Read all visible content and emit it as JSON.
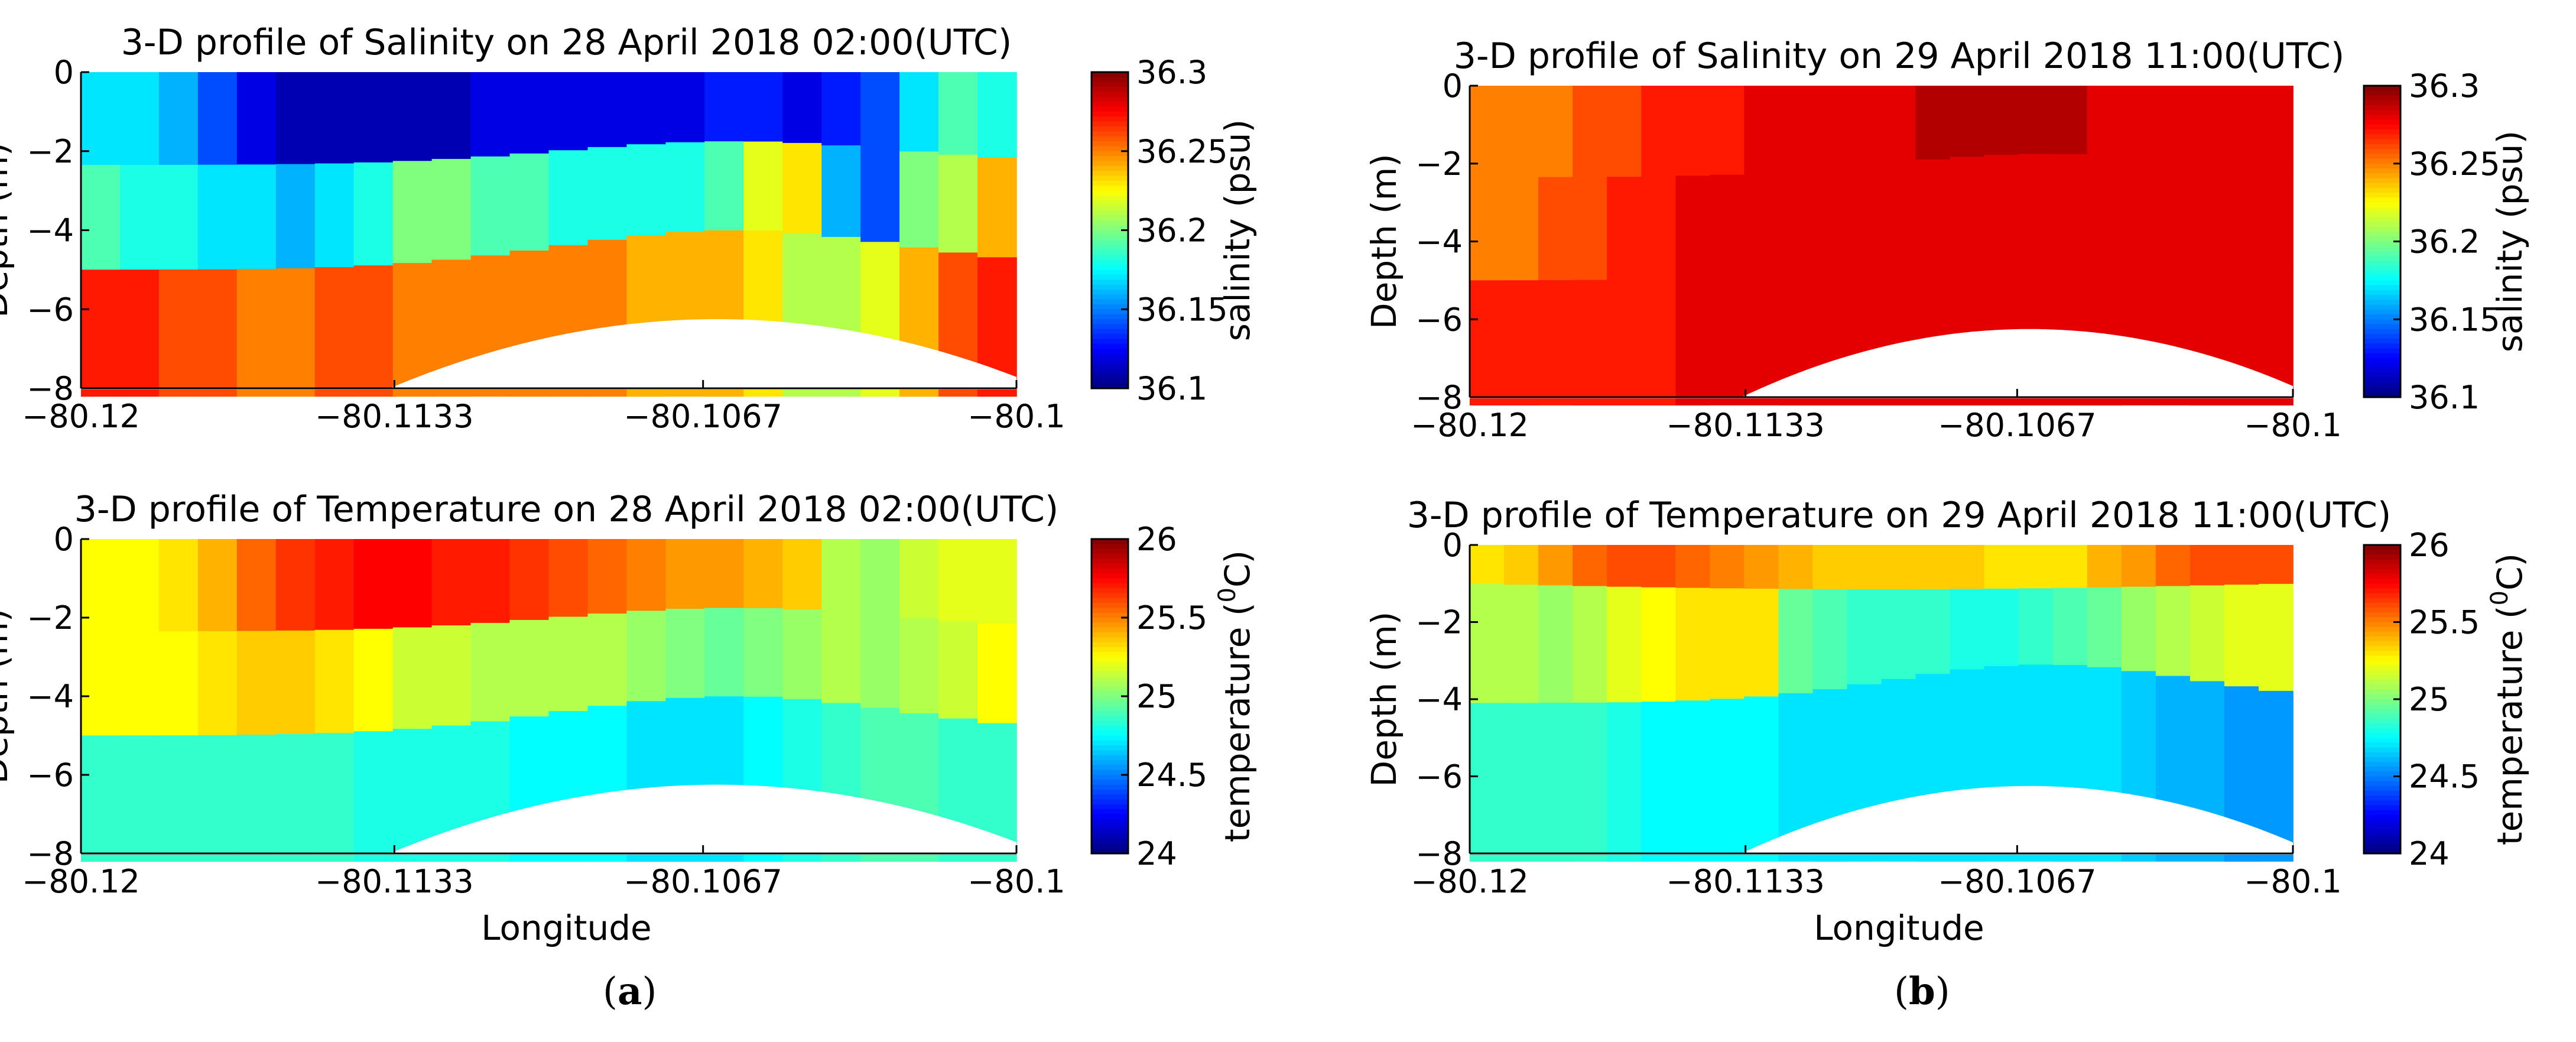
{
  "colors": {
    "white": "#ffffff",
    "axis": "#000000"
  },
  "figure": {
    "panel_a": {
      "open": "(",
      "letter": "a",
      "close": ")"
    },
    "panel_b": {
      "open": "(",
      "letter": "b",
      "close": ")"
    }
  },
  "chart_data": [
    {
      "id": "sal_a",
      "type": "heatmap",
      "title": "3-D profile of Salinity on 28 April 2018 02:00(UTC)",
      "xlabel": "",
      "ylabel": "Depth (m)",
      "xlim": [
        -80.12,
        -80.1
      ],
      "ylim": [
        -8,
        0
      ],
      "xticks": [
        -80.12,
        -80.1133,
        -80.1067,
        -80.1
      ],
      "xtick_labels": [
        "−80.12",
        "−80.1133",
        "−80.1067",
        "−80.1"
      ],
      "yticks": [
        0,
        -2,
        -4,
        -6,
        -8
      ],
      "ytick_labels": [
        "0",
        "−2",
        "−4",
        "−6",
        "−8"
      ],
      "colorbar": {
        "label": "salinity (psu)",
        "range": [
          36.1,
          36.3
        ],
        "ticks": [
          36.1,
          36.15,
          36.2,
          36.25,
          36.3
        ],
        "tick_labels": [
          "36.1",
          "36.15",
          "36.2",
          "36.25",
          "36.3"
        ]
      },
      "layers": [
        {
          "name": "surface",
          "values": [
            36.17,
            36.17,
            36.16,
            36.14,
            36.12,
            36.11,
            36.11,
            36.11,
            36.11,
            36.11,
            36.12,
            36.12,
            36.12,
            36.12,
            36.12,
            36.12,
            36.13,
            36.13,
            36.12,
            36.13,
            36.14,
            36.17,
            36.19,
            36.18
          ]
        },
        {
          "name": "middle",
          "values": [
            36.19,
            36.18,
            36.18,
            36.17,
            36.17,
            36.16,
            36.17,
            36.18,
            36.2,
            36.2,
            36.19,
            36.19,
            36.18,
            36.18,
            36.18,
            36.18,
            36.19,
            36.22,
            36.23,
            36.16,
            36.14,
            36.2,
            36.21,
            36.24
          ]
        },
        {
          "name": "bottom",
          "values": [
            36.27,
            36.27,
            36.26,
            36.26,
            36.25,
            36.25,
            36.26,
            36.26,
            36.25,
            36.25,
            36.25,
            36.25,
            36.25,
            36.25,
            36.24,
            36.24,
            36.24,
            36.23,
            36.21,
            36.21,
            36.22,
            36.24,
            36.26,
            36.27
          ]
        }
      ]
    },
    {
      "id": "temp_a",
      "type": "heatmap",
      "title": "3-D profile of Temperature on 28 April 2018 02:00(UTC)",
      "xlabel": "Longitude",
      "ylabel": "Depth (m)",
      "xlim": [
        -80.12,
        -80.1
      ],
      "ylim": [
        -8,
        0
      ],
      "xticks": [
        -80.12,
        -80.1133,
        -80.1067,
        -80.1
      ],
      "xtick_labels": [
        "−80.12",
        "−80.1133",
        "−80.1067",
        "−80.1"
      ],
      "yticks": [
        0,
        -2,
        -4,
        -6,
        -8
      ],
      "ytick_labels": [
        "0",
        "−2",
        "−4",
        "−6",
        "−8"
      ],
      "colorbar": {
        "label": "temperature (°C)",
        "label_main": "temperature (",
        "label_sup": "0",
        "label_unit": "C)",
        "range": [
          24,
          26
        ],
        "ticks": [
          24,
          24.5,
          25,
          25.5,
          26
        ],
        "tick_labels": [
          "24",
          "24.5",
          "25",
          "25.5",
          "26"
        ]
      },
      "layers": [
        {
          "name": "surface",
          "values": [
            25.25,
            25.25,
            25.3,
            25.4,
            25.55,
            25.65,
            25.7,
            25.75,
            25.75,
            25.7,
            25.7,
            25.65,
            25.6,
            25.55,
            25.5,
            25.45,
            25.45,
            25.4,
            25.35,
            25.1,
            25.05,
            25.15,
            25.2,
            25.2
          ]
        },
        {
          "name": "middle",
          "values": [
            25.25,
            25.25,
            25.25,
            25.3,
            25.35,
            25.35,
            25.3,
            25.25,
            25.15,
            25.15,
            25.1,
            25.1,
            25.1,
            25.1,
            25.05,
            25.0,
            24.95,
            25.0,
            25.05,
            25.1,
            25.05,
            25.1,
            25.15,
            25.25
          ]
        },
        {
          "name": "bottom",
          "values": [
            24.85,
            24.85,
            24.85,
            24.85,
            24.85,
            24.85,
            24.85,
            24.8,
            24.8,
            24.8,
            24.8,
            24.75,
            24.75,
            24.75,
            24.7,
            24.7,
            24.7,
            24.75,
            24.8,
            24.85,
            24.9,
            24.9,
            24.85,
            24.85
          ]
        }
      ]
    },
    {
      "id": "sal_b",
      "type": "heatmap",
      "title": "3-D profile of Salinity on 29 April 2018 11:00(UTC)",
      "xlabel": "",
      "ylabel": "Depth (m)",
      "xlim": [
        -80.12,
        -80.1
      ],
      "ylim": [
        -8,
        0
      ],
      "xticks": [
        -80.12,
        -80.1133,
        -80.1067,
        -80.1
      ],
      "xtick_labels": [
        "−80.12",
        "−80.1133",
        "−80.1067",
        "−80.1"
      ],
      "yticks": [
        0,
        -2,
        -4,
        -6,
        -8
      ],
      "ytick_labels": [
        "0",
        "−2",
        "−4",
        "−6",
        "−8"
      ],
      "colorbar": {
        "label": "salinity (psu)",
        "range": [
          36.1,
          36.3
        ],
        "ticks": [
          36.1,
          36.15,
          36.2,
          36.25,
          36.3
        ],
        "tick_labels": [
          "36.1",
          "36.15",
          "36.2",
          "36.25",
          "36.3"
        ]
      },
      "layers": [
        {
          "name": "surface",
          "values": [
            36.25,
            36.25,
            36.25,
            36.26,
            36.26,
            36.27,
            36.27,
            36.27,
            36.28,
            36.28,
            36.28,
            36.28,
            36.28,
            36.29,
            36.29,
            36.29,
            36.29,
            36.29,
            36.28,
            36.28,
            36.28,
            36.28,
            36.28,
            36.28
          ]
        },
        {
          "name": "middle",
          "values": [
            36.25,
            36.25,
            36.26,
            36.26,
            36.27,
            36.27,
            36.28,
            36.28,
            36.28,
            36.28,
            36.28,
            36.28,
            36.28,
            36.28,
            36.28,
            36.28,
            36.28,
            36.28,
            36.28,
            36.28,
            36.28,
            36.28,
            36.28,
            36.28
          ]
        },
        {
          "name": "bottom",
          "values": [
            36.27,
            36.27,
            36.27,
            36.27,
            36.27,
            36.27,
            36.28,
            36.28,
            36.28,
            36.28,
            36.28,
            36.28,
            36.28,
            36.28,
            36.28,
            36.28,
            36.28,
            36.28,
            36.28,
            36.28,
            36.28,
            36.28,
            36.28,
            36.28
          ]
        }
      ]
    },
    {
      "id": "temp_b",
      "type": "heatmap",
      "title": "3-D profile of Temperature on 29 April 2018 11:00(UTC)",
      "xlabel": "Longitude",
      "ylabel": "Depth (m)",
      "xlim": [
        -80.12,
        -80.1
      ],
      "ylim": [
        -8,
        0
      ],
      "xticks": [
        -80.12,
        -80.1133,
        -80.1067,
        -80.1
      ],
      "xtick_labels": [
        "−80.12",
        "−80.1133",
        "−80.1067",
        "−80.1"
      ],
      "yticks": [
        0,
        -2,
        -4,
        -6,
        -8
      ],
      "ytick_labels": [
        "0",
        "−2",
        "−4",
        "−6",
        "−8"
      ],
      "colorbar": {
        "label": "temperature (°C)",
        "label_main": "temperature (",
        "label_sup": "0",
        "label_unit": "C)",
        "range": [
          24,
          26
        ],
        "ticks": [
          24,
          24.5,
          25,
          25.5,
          26
        ],
        "tick_labels": [
          "24",
          "24.5",
          "25",
          "25.5",
          "26"
        ]
      },
      "layers": [
        {
          "name": "surface",
          "values": [
            25.3,
            25.35,
            25.45,
            25.55,
            25.6,
            25.6,
            25.55,
            25.5,
            25.45,
            25.4,
            25.35,
            25.35,
            25.35,
            25.35,
            25.35,
            25.3,
            25.3,
            25.3,
            25.4,
            25.45,
            25.55,
            25.6,
            25.6,
            25.6
          ]
        },
        {
          "name": "middle",
          "values": [
            25.1,
            25.1,
            25.05,
            25.1,
            25.2,
            25.25,
            25.3,
            25.3,
            25.3,
            24.95,
            24.9,
            24.85,
            24.85,
            24.85,
            24.8,
            24.8,
            24.85,
            24.9,
            24.95,
            25.05,
            25.1,
            25.15,
            25.2,
            25.2
          ]
        },
        {
          "name": "bottom",
          "values": [
            24.85,
            24.85,
            24.85,
            24.85,
            24.8,
            24.75,
            24.75,
            24.75,
            24.75,
            24.7,
            24.7,
            24.7,
            24.7,
            24.7,
            24.7,
            24.7,
            24.7,
            24.7,
            24.7,
            24.65,
            24.6,
            24.6,
            24.55,
            24.55
          ]
        }
      ]
    }
  ]
}
